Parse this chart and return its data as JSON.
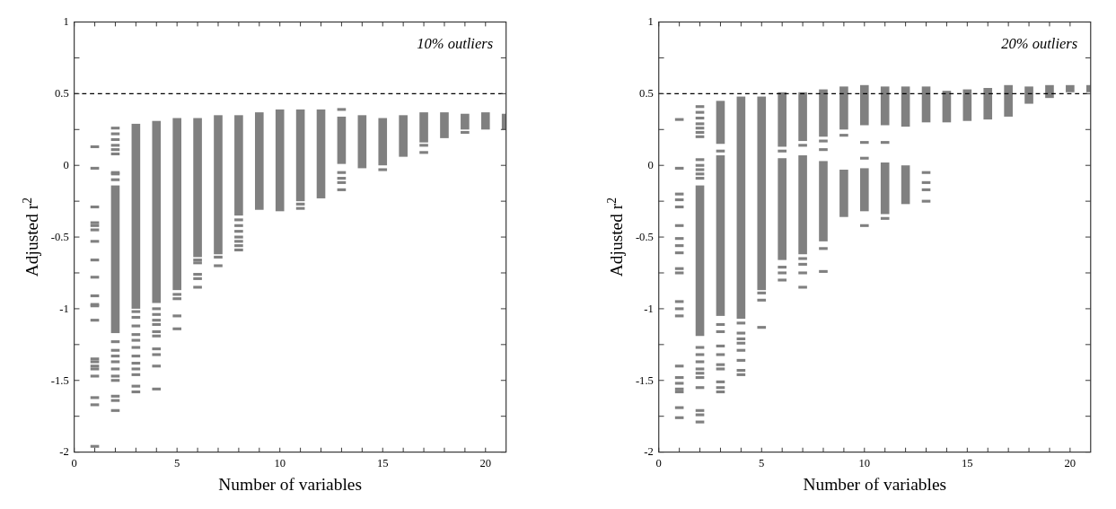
{
  "chart_data": [
    {
      "type": "scatter",
      "xlabel": "Number of variables",
      "ylabel": "Adjusted r$^{2}$",
      "annotations": [
        "10% outliers"
      ],
      "xlim": [
        0,
        21
      ],
      "ylim": [
        -2,
        1
      ],
      "xticks": [
        0,
        {
          "value": 1,
          "label": null
        },
        {
          "value": 2,
          "label": null
        },
        {
          "value": 3,
          "label": null
        },
        {
          "value": 4,
          "label": null
        },
        5,
        {
          "value": 6,
          "label": null
        },
        {
          "value": 7,
          "label": null
        },
        {
          "value": 8,
          "label": null
        },
        {
          "value": 9,
          "label": null
        },
        10,
        {
          "value": 11,
          "label": null
        },
        {
          "value": 12,
          "label": null
        },
        {
          "value": 13,
          "label": null
        },
        {
          "value": 14,
          "label": null
        },
        15,
        {
          "value": 16,
          "label": null
        },
        {
          "value": 17,
          "label": null
        },
        {
          "value": 18,
          "label": null
        },
        {
          "value": 19,
          "label": null
        },
        20
      ],
      "yticks": [
        -2,
        {
          "value": -1.75,
          "label": null
        },
        -1.5,
        {
          "value": -1.25,
          "label": null
        },
        -1,
        {
          "value": -0.75,
          "label": null
        },
        -0.5,
        {
          "value": -0.25,
          "label": null
        },
        0,
        {
          "value": 0.25,
          "label": null
        },
        0.5,
        {
          "value": 0.75,
          "label": null
        },
        1
      ],
      "ref_lines": [
        {
          "axis": "y",
          "value": 0.5,
          "color": "#000000",
          "line_style": "dashed"
        }
      ],
      "series": [
        {
          "type": "bar",
          "color": "#808080",
          "x": [
            2,
            3,
            4,
            5,
            6,
            7,
            8,
            9,
            10,
            11,
            12,
            13,
            14,
            15,
            16,
            17,
            18,
            19,
            20,
            21
          ],
          "base": [
            -1.17,
            -1.0,
            -0.96,
            -0.87,
            -0.64,
            -0.62,
            -0.35,
            -0.31,
            -0.32,
            -0.25,
            -0.23,
            0.01,
            -0.02,
            0.0,
            0.06,
            0.16,
            0.19,
            0.25,
            0.25,
            0.25
          ],
          "values": [
            1.03,
            1.29,
            1.27,
            1.2,
            0.97,
            0.97,
            0.7,
            0.68,
            0.71,
            0.64,
            0.62,
            0.33,
            0.37,
            0.33,
            0.29,
            0.21,
            0.18,
            0.11,
            0.12,
            0.11
          ]
        },
        {
          "color": "#808080",
          "x": [
            1,
            1,
            1,
            1,
            1,
            1,
            1,
            1,
            1,
            1,
            1,
            1,
            1,
            1,
            1,
            1,
            1,
            1,
            1,
            1,
            1,
            2,
            2,
            2,
            2,
            2,
            2,
            2,
            2,
            2,
            2,
            2,
            2,
            2,
            2,
            2,
            2,
            2,
            2,
            2,
            3,
            3,
            3,
            3,
            3,
            3,
            3,
            3,
            3,
            3,
            3,
            3,
            4,
            4,
            4,
            4,
            4,
            4,
            4,
            4,
            4,
            4,
            5,
            5,
            5,
            5,
            6,
            6,
            6,
            6,
            6,
            7,
            7,
            8,
            8,
            8,
            8,
            8,
            8,
            8,
            11,
            11,
            13,
            13,
            13,
            13,
            13,
            15,
            17,
            17,
            19
          ],
          "values": [
            0.13,
            -0.02,
            -0.29,
            -0.4,
            -0.42,
            -0.45,
            -0.53,
            -0.66,
            -0.78,
            -0.91,
            -0.97,
            -0.98,
            -1.08,
            -1.35,
            -1.37,
            -1.4,
            -1.42,
            -1.47,
            -1.62,
            -1.67,
            -1.96,
            0.26,
            0.22,
            0.18,
            0.14,
            0.11,
            0.08,
            -0.05,
            -0.06,
            -0.1,
            -1.23,
            -1.29,
            -1.33,
            -1.37,
            -1.42,
            -1.47,
            -1.5,
            -1.61,
            -1.64,
            -1.71,
            -1.02,
            -1.06,
            -1.12,
            -1.18,
            -1.22,
            -1.27,
            -1.33,
            -1.38,
            -1.42,
            -1.46,
            -1.54,
            -1.58,
            -1.0,
            -1.04,
            -1.08,
            -1.11,
            -1.16,
            -1.19,
            -1.28,
            -1.32,
            -1.4,
            -1.56,
            -0.9,
            -0.93,
            -1.05,
            -1.14,
            -0.66,
            -0.68,
            -0.76,
            -0.79,
            -0.85,
            -0.64,
            -0.7,
            -0.38,
            -0.42,
            -0.46,
            -0.5,
            -0.53,
            -0.56,
            -0.59,
            -0.27,
            -0.3,
            0.39,
            -0.05,
            -0.09,
            -0.12,
            -0.17,
            -0.03,
            0.14,
            0.09,
            0.23
          ]
        }
      ]
    },
    {
      "type": "scatter",
      "xlabel": "Number of variables",
      "ylabel": "Adjusted r$^{2}$",
      "annotations": [
        "20% outliers"
      ],
      "xlim": [
        0,
        21
      ],
      "ylim": [
        -2,
        1
      ],
      "xticks": [
        0,
        {
          "value": 1,
          "label": null
        },
        {
          "value": 2,
          "label": null
        },
        {
          "value": 3,
          "label": null
        },
        {
          "value": 4,
          "label": null
        },
        5,
        {
          "value": 6,
          "label": null
        },
        {
          "value": 7,
          "label": null
        },
        {
          "value": 8,
          "label": null
        },
        {
          "value": 9,
          "label": null
        },
        10,
        {
          "value": 11,
          "label": null
        },
        {
          "value": 12,
          "label": null
        },
        {
          "value": 13,
          "label": null
        },
        {
          "value": 14,
          "label": null
        },
        15,
        {
          "value": 16,
          "label": null
        },
        {
          "value": 17,
          "label": null
        },
        {
          "value": 18,
          "label": null
        },
        {
          "value": 19,
          "label": null
        },
        20
      ],
      "yticks": [
        -2,
        {
          "value": -1.75,
          "label": null
        },
        -1.5,
        {
          "value": -1.25,
          "label": null
        },
        -1,
        {
          "value": -0.75,
          "label": null
        },
        -0.5,
        {
          "value": -0.25,
          "label": null
        },
        0,
        {
          "value": 0.25,
          "label": null
        },
        0.5,
        {
          "value": 0.75,
          "label": null
        },
        1
      ],
      "ref_lines": [
        {
          "axis": "y",
          "value": 0.5,
          "color": "#000000",
          "line_style": "dashed"
        }
      ],
      "series": [
        {
          "type": "bar",
          "color": "#808080",
          "x": [
            2,
            3,
            4,
            5,
            6,
            7,
            8,
            9,
            10,
            11,
            12
          ],
          "base": [
            -1.19,
            -1.05,
            -1.07,
            -0.87,
            -0.66,
            -0.62,
            -0.53,
            -0.36,
            -0.32,
            -0.34,
            -0.27
          ],
          "values": [
            1.05,
            1.12,
            1.55,
            1.35,
            0.71,
            0.69,
            0.56,
            0.33,
            0.3,
            0.36,
            0.27
          ]
        },
        {
          "type": "bar",
          "color": "#808080",
          "x": [
            3,
            6,
            7,
            8,
            9,
            10,
            11,
            12,
            13,
            14,
            15,
            16,
            17,
            18,
            19,
            20,
            21
          ],
          "base": [
            0.15,
            0.13,
            0.17,
            0.2,
            0.25,
            0.28,
            0.28,
            0.27,
            0.3,
            0.3,
            0.31,
            0.32,
            0.34,
            0.43,
            0.47,
            0.51,
            0.51
          ],
          "values": [
            0.3,
            0.38,
            0.34,
            0.33,
            0.3,
            0.28,
            0.27,
            0.28,
            0.25,
            0.22,
            0.22,
            0.22,
            0.22,
            0.12,
            0.09,
            0.05,
            0.05
          ]
        },
        {
          "color": "#808080",
          "x": [
            1,
            1,
            1,
            1,
            1,
            1,
            1,
            1,
            1,
            1,
            1,
            1,
            1,
            1,
            1,
            1,
            1,
            1,
            1,
            1,
            1,
            2,
            2,
            2,
            2,
            2,
            2,
            2,
            2,
            2,
            2,
            2,
            2,
            2,
            2,
            2,
            2,
            2,
            2,
            2,
            2,
            2,
            2,
            3,
            3,
            3,
            3,
            3,
            3,
            3,
            3,
            3,
            3,
            4,
            4,
            4,
            4,
            4,
            4,
            4,
            4,
            5,
            5,
            5,
            6,
            6,
            6,
            6,
            7,
            7,
            7,
            7,
            7,
            8,
            8,
            8,
            8,
            9,
            10,
            10,
            10,
            11,
            11,
            13,
            13,
            13,
            13
          ],
          "values": [
            0.32,
            -0.02,
            -0.2,
            -0.24,
            -0.29,
            -0.42,
            -0.51,
            -0.56,
            -0.61,
            -0.72,
            -0.75,
            -0.95,
            -1.0,
            -1.05,
            -1.4,
            -1.48,
            -1.52,
            -1.56,
            -1.58,
            -1.69,
            -1.76,
            0.41,
            0.37,
            0.33,
            0.29,
            0.26,
            0.23,
            0.2,
            0.04,
            0.0,
            -0.03,
            -0.06,
            -0.09,
            -1.27,
            -1.32,
            -1.37,
            -1.42,
            -1.45,
            -1.48,
            -1.55,
            -1.71,
            -1.74,
            -1.79,
            0.1,
            -1.11,
            -1.16,
            -1.26,
            -1.32,
            -1.39,
            -1.42,
            -1.51,
            -1.55,
            -1.58,
            -1.1,
            -1.17,
            -1.21,
            -1.24,
            -1.29,
            -1.36,
            -1.43,
            -1.46,
            -0.89,
            -0.94,
            -1.13,
            0.1,
            -0.71,
            -0.75,
            -0.8,
            0.14,
            -0.65,
            -0.69,
            -0.75,
            -0.85,
            0.17,
            0.11,
            -0.58,
            -0.74,
            0.21,
            0.16,
            0.05,
            -0.42,
            0.16,
            -0.37,
            -0.05,
            -0.12,
            -0.17,
            -0.25
          ]
        }
      ]
    }
  ]
}
